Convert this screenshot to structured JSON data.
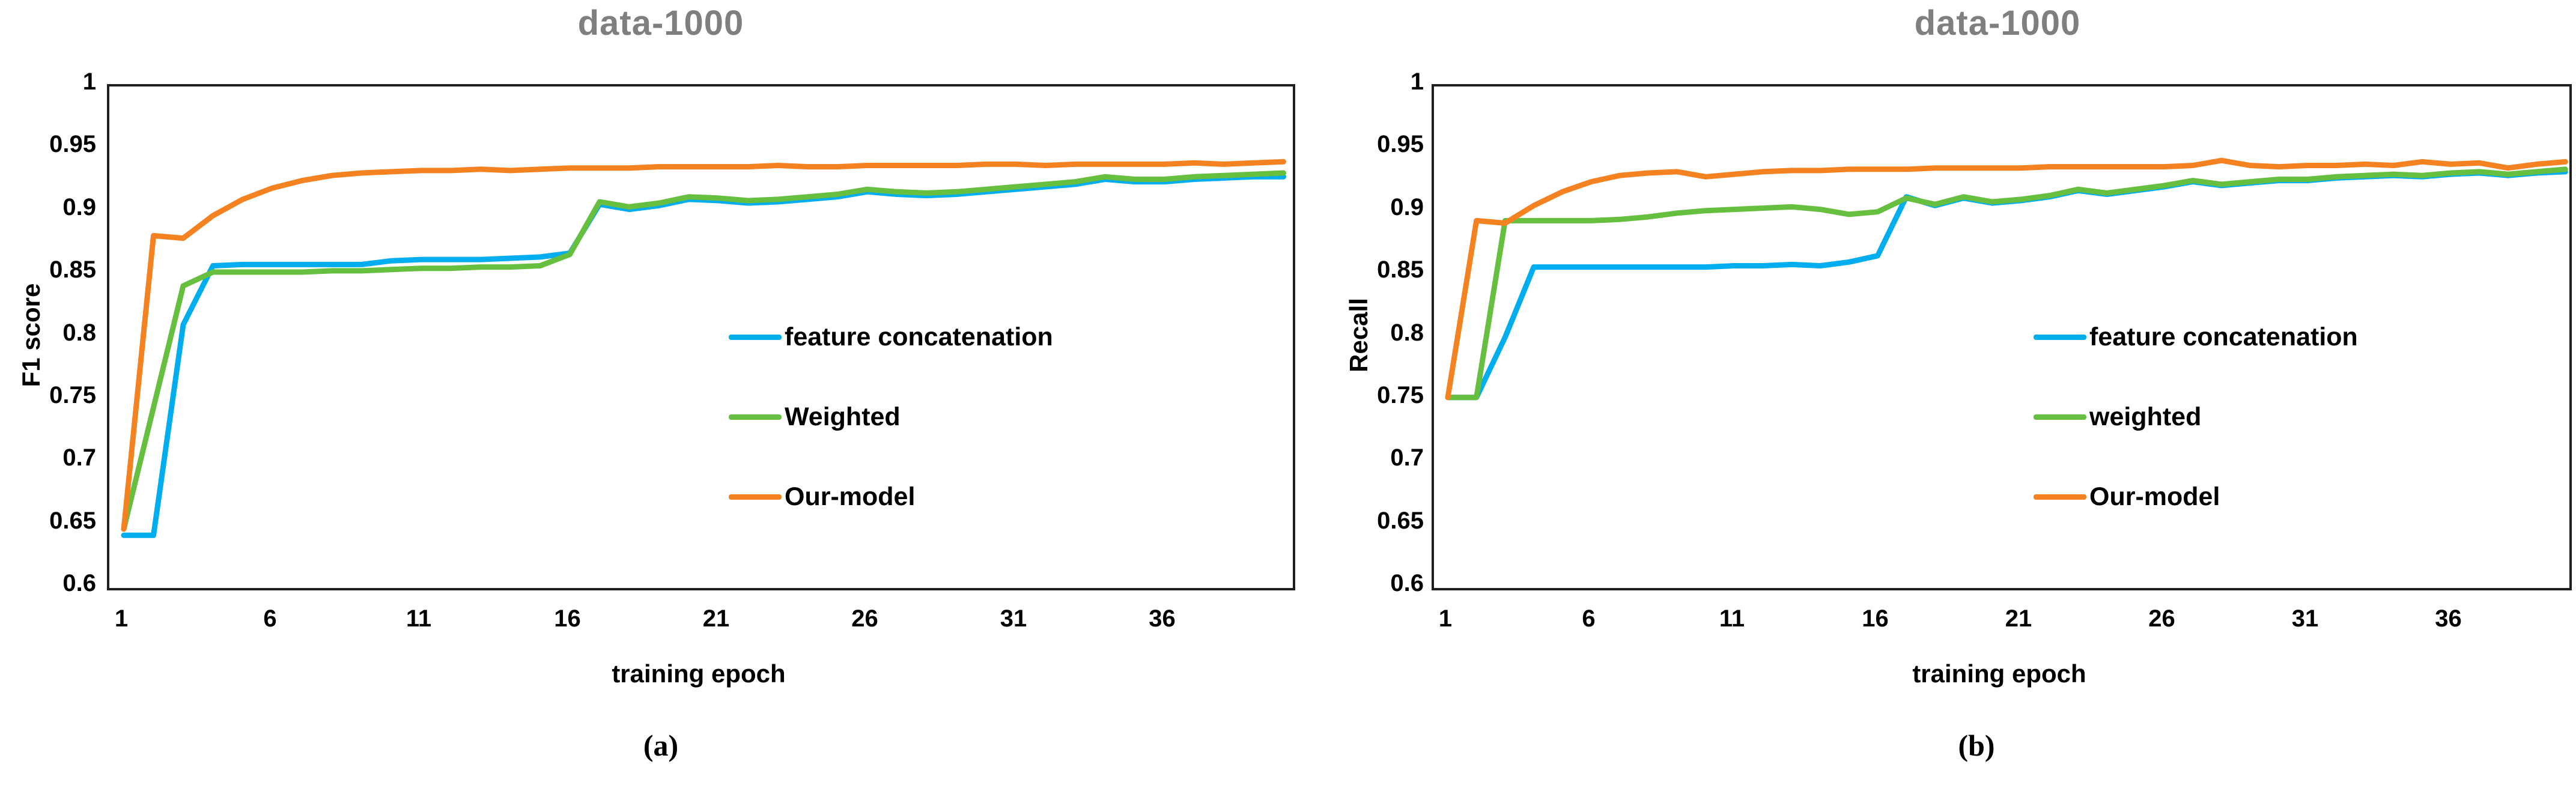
{
  "figure": {
    "background": "#ffffff",
    "title_color": "#7f7f7f",
    "text_color": "#000000",
    "axis_color": "#1f1f1f"
  },
  "chart_data": [
    {
      "type": "line",
      "title": "data-1000",
      "xlabel": "training epoch",
      "ylabel": "F1 score",
      "caption": "(a)",
      "grid": false,
      "legend_position": "center-right-inside",
      "xlim": [
        1,
        40
      ],
      "ylim": [
        0.6,
        1.0
      ],
      "x_ticks": [
        "1",
        "6",
        "11",
        "16",
        "21",
        "26",
        "31",
        "36"
      ],
      "y_ticks": [
        "1",
        "0.95",
        "0.9",
        "0.85",
        "0.8",
        "0.75",
        "0.7",
        "0.65",
        "0.6"
      ],
      "x": [
        1,
        2,
        3,
        4,
        5,
        6,
        7,
        8,
        9,
        10,
        11,
        12,
        13,
        14,
        15,
        16,
        17,
        18,
        19,
        20,
        21,
        22,
        23,
        24,
        25,
        26,
        27,
        28,
        29,
        30,
        31,
        32,
        33,
        34,
        35,
        36,
        37,
        38,
        39,
        40
      ],
      "series": [
        {
          "name": "feature concatenation",
          "color": "#00AEEF",
          "values": [
            0.642,
            0.642,
            0.81,
            0.857,
            0.858,
            0.858,
            0.858,
            0.858,
            0.858,
            0.861,
            0.862,
            0.862,
            0.862,
            0.863,
            0.864,
            0.867,
            0.906,
            0.902,
            0.905,
            0.91,
            0.909,
            0.907,
            0.908,
            0.91,
            0.912,
            0.916,
            0.914,
            0.913,
            0.914,
            0.916,
            0.918,
            0.92,
            0.922,
            0.926,
            0.924,
            0.924,
            0.926,
            0.927,
            0.928,
            0.928
          ]
        },
        {
          "name": "Weighted",
          "color": "#66BF3F",
          "values": [
            0.647,
            0.744,
            0.841,
            0.852,
            0.852,
            0.852,
            0.852,
            0.853,
            0.853,
            0.854,
            0.855,
            0.855,
            0.856,
            0.856,
            0.857,
            0.866,
            0.908,
            0.904,
            0.907,
            0.912,
            0.911,
            0.909,
            0.91,
            0.912,
            0.914,
            0.918,
            0.916,
            0.915,
            0.916,
            0.918,
            0.92,
            0.922,
            0.924,
            0.928,
            0.926,
            0.926,
            0.928,
            0.929,
            0.93,
            0.931
          ]
        },
        {
          "name": "Our-model",
          "color": "#F58220",
          "values": [
            0.647,
            0.881,
            0.879,
            0.897,
            0.91,
            0.919,
            0.925,
            0.929,
            0.931,
            0.932,
            0.933,
            0.933,
            0.934,
            0.933,
            0.934,
            0.935,
            0.935,
            0.935,
            0.936,
            0.936,
            0.936,
            0.936,
            0.937,
            0.936,
            0.936,
            0.937,
            0.937,
            0.937,
            0.937,
            0.938,
            0.938,
            0.937,
            0.938,
            0.938,
            0.938,
            0.938,
            0.939,
            0.938,
            0.939,
            0.94
          ]
        }
      ]
    },
    {
      "type": "line",
      "title": "data-1000",
      "xlabel": "training epoch",
      "ylabel": "Recall",
      "caption": "(b)",
      "grid": false,
      "legend_position": "center-right-inside",
      "xlim": [
        1,
        40
      ],
      "ylim": [
        0.6,
        1.0
      ],
      "x_ticks": [
        "1",
        "6",
        "11",
        "16",
        "21",
        "26",
        "31",
        "36"
      ],
      "y_ticks": [
        "1",
        "0.95",
        "0.9",
        "0.85",
        "0.8",
        "0.75",
        "0.7",
        "0.65",
        "0.6"
      ],
      "x": [
        1,
        2,
        3,
        4,
        5,
        6,
        7,
        8,
        9,
        10,
        11,
        12,
        13,
        14,
        15,
        16,
        17,
        18,
        19,
        20,
        21,
        22,
        23,
        24,
        25,
        26,
        27,
        28,
        29,
        30,
        31,
        32,
        33,
        34,
        35,
        36,
        37,
        38,
        39,
        40
      ],
      "series": [
        {
          "name": "feature concatenation",
          "color": "#00AEEF",
          "values": [
            0.752,
            0.752,
            0.8,
            0.856,
            0.856,
            0.856,
            0.856,
            0.856,
            0.856,
            0.856,
            0.857,
            0.857,
            0.858,
            0.857,
            0.86,
            0.865,
            0.912,
            0.905,
            0.911,
            0.907,
            0.909,
            0.912,
            0.917,
            0.914,
            0.917,
            0.92,
            0.924,
            0.921,
            0.923,
            0.925,
            0.925,
            0.927,
            0.928,
            0.929,
            0.928,
            0.93,
            0.931,
            0.929,
            0.931,
            0.932
          ]
        },
        {
          "name": "weighted",
          "color": "#66BF3F",
          "values": [
            0.752,
            0.752,
            0.893,
            0.893,
            0.893,
            0.893,
            0.894,
            0.896,
            0.899,
            0.901,
            0.902,
            0.903,
            0.904,
            0.902,
            0.898,
            0.9,
            0.911,
            0.906,
            0.912,
            0.908,
            0.91,
            0.913,
            0.918,
            0.915,
            0.918,
            0.921,
            0.925,
            0.922,
            0.924,
            0.926,
            0.926,
            0.928,
            0.929,
            0.93,
            0.929,
            0.931,
            0.932,
            0.93,
            0.932,
            0.934
          ]
        },
        {
          "name": "Our-model",
          "color": "#F58220",
          "values": [
            0.752,
            0.893,
            0.891,
            0.905,
            0.916,
            0.924,
            0.929,
            0.931,
            0.932,
            0.928,
            0.93,
            0.932,
            0.933,
            0.933,
            0.934,
            0.934,
            0.934,
            0.935,
            0.935,
            0.935,
            0.935,
            0.936,
            0.936,
            0.936,
            0.936,
            0.936,
            0.937,
            0.941,
            0.937,
            0.936,
            0.937,
            0.937,
            0.938,
            0.937,
            0.94,
            0.938,
            0.939,
            0.935,
            0.938,
            0.94
          ]
        }
      ]
    }
  ]
}
